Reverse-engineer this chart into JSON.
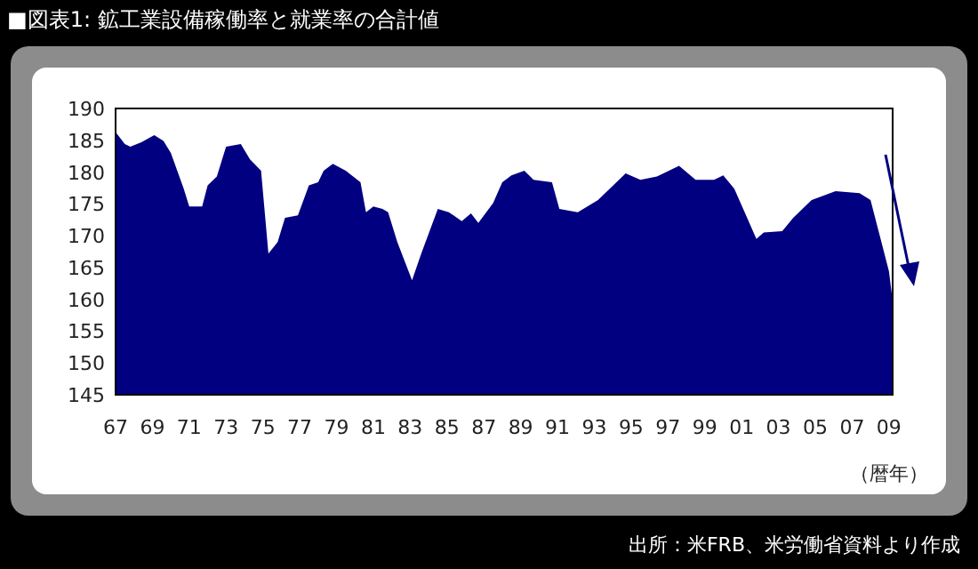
{
  "chart_data": {
    "type": "area",
    "title": "■図表1: 鉱工業設備稼働率と就業率の合計値",
    "xlabel": "（暦年）",
    "annotations": [
      "出所：米FRB、米労働省資料より作成"
    ],
    "color": "#000080",
    "x": [
      1967.0,
      1967.5,
      1967.8,
      1968.4,
      1969.1,
      1969.6,
      1970.0,
      1970.7,
      1971.0,
      1971.7,
      1972.0,
      1972.5,
      1973.0,
      1973.8,
      1974.3,
      1974.9,
      1975.3,
      1975.8,
      1976.2,
      1976.9,
      1977.5,
      1978.0,
      1978.3,
      1978.8,
      1979.5,
      1980.3,
      1980.6,
      1981.0,
      1981.5,
      1981.8,
      1982.3,
      1983.1,
      1983.6,
      1984.5,
      1985.1,
      1985.8,
      1986.3,
      1986.7,
      1987.5,
      1988.0,
      1988.5,
      1989.2,
      1989.7,
      1990.7,
      1991.1,
      1992.1,
      1993.2,
      1994.7,
      1995.5,
      1996.4,
      1997.6,
      1998.5,
      1999.5,
      2000.0,
      2000.6,
      2001.8,
      2002.2,
      2003.2,
      2003.8,
      2004.8,
      2006.1,
      2007.4,
      2008.0,
      2008.5,
      2009.0,
      2009.2
    ],
    "values": [
      186.3,
      184.4,
      184.0,
      184.7,
      185.8,
      184.9,
      183.0,
      177.4,
      174.6,
      174.6,
      177.9,
      179.3,
      184.0,
      184.4,
      182.0,
      180.2,
      167.2,
      169.0,
      172.8,
      173.2,
      177.9,
      178.4,
      180.2,
      181.3,
      180.2,
      178.4,
      173.7,
      174.6,
      174.2,
      173.7,
      169.0,
      163.0,
      167.2,
      174.2,
      173.7,
      172.3,
      173.5,
      172.0,
      175.1,
      178.4,
      179.5,
      180.2,
      178.8,
      178.4,
      174.2,
      173.7,
      175.6,
      179.8,
      178.8,
      179.3,
      181.0,
      178.8,
      178.8,
      179.5,
      177.4,
      169.5,
      170.5,
      170.7,
      172.8,
      175.6,
      177.0,
      176.7,
      175.6,
      170.0,
      164.4,
      159.7
    ],
    "xlim": [
      1967,
      2009.2
    ],
    "ylim": [
      145,
      190
    ],
    "yticks": [
      145,
      150,
      155,
      160,
      165,
      170,
      175,
      180,
      185,
      190
    ],
    "xticks": [
      {
        "value": 1967,
        "label": "67"
      },
      {
        "value": 1969,
        "label": "69"
      },
      {
        "value": 1971,
        "label": "71"
      },
      {
        "value": 1973,
        "label": "73"
      },
      {
        "value": 1975,
        "label": "75"
      },
      {
        "value": 1977,
        "label": "77"
      },
      {
        "value": 1979,
        "label": "79"
      },
      {
        "value": 1981,
        "label": "81"
      },
      {
        "value": 1983,
        "label": "83"
      },
      {
        "value": 1985,
        "label": "85"
      },
      {
        "value": 1987,
        "label": "87"
      },
      {
        "value": 1989,
        "label": "89"
      },
      {
        "value": 1991,
        "label": "91"
      },
      {
        "value": 1993,
        "label": "93"
      },
      {
        "value": 1995,
        "label": "95"
      },
      {
        "value": 1997,
        "label": "97"
      },
      {
        "value": 1999,
        "label": "99"
      },
      {
        "value": 2001,
        "label": "01"
      },
      {
        "value": 2003,
        "label": "03"
      },
      {
        "value": 2005,
        "label": "05"
      },
      {
        "value": 2007,
        "label": "07"
      },
      {
        "value": 2009,
        "label": "09"
      }
    ]
  }
}
